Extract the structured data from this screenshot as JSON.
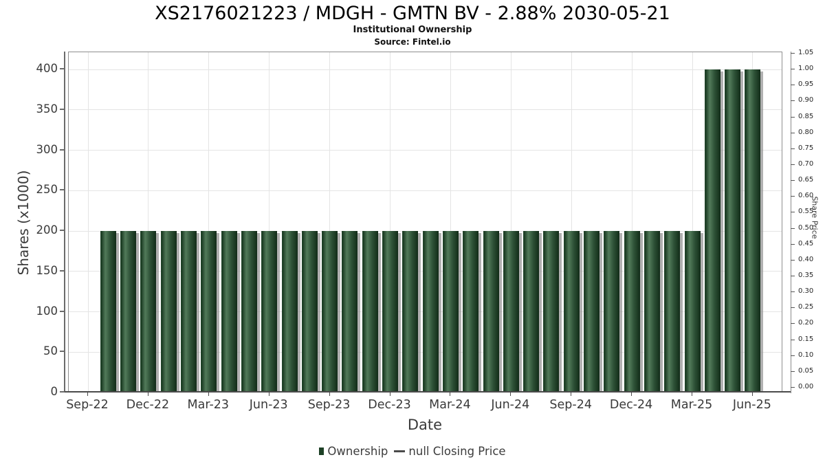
{
  "header": {
    "title": "XS2176021223 / MDGH - GMTN BV - 2.88% 2030-05-21",
    "subtitle": "Institutional Ownership",
    "source": "Source: Fintel.io"
  },
  "chart_data": {
    "type": "bar",
    "title": "XS2176021223 / MDGH - GMTN BV - 2.88% 2030-05-21",
    "xlabel": "Date",
    "ylabel_left": "Shares (x1000)",
    "ylabel_right": "Share Price",
    "x": [
      "Oct-22",
      "Nov-22",
      "Dec-22",
      "Jan-23",
      "Feb-23",
      "Mar-23",
      "Apr-23",
      "May-23",
      "Jun-23",
      "Jul-23",
      "Aug-23",
      "Sep-23",
      "Oct-23",
      "Nov-23",
      "Dec-23",
      "Jan-24",
      "Feb-24",
      "Mar-24",
      "Apr-24",
      "May-24",
      "Jun-24",
      "Jul-24",
      "Aug-24",
      "Sep-24",
      "Oct-24",
      "Nov-24",
      "Dec-24",
      "Jan-25",
      "Feb-25",
      "Mar-25",
      "Apr-25",
      "May-25",
      "Jun-25"
    ],
    "series": [
      {
        "name": "Ownership",
        "values": [
          200,
          200,
          200,
          200,
          200,
          200,
          200,
          200,
          200,
          200,
          200,
          200,
          200,
          200,
          200,
          200,
          200,
          200,
          200,
          200,
          200,
          200,
          200,
          200,
          200,
          200,
          200,
          200,
          200,
          200,
          400,
          400,
          400
        ]
      },
      {
        "name": "null Closing Price",
        "values": null
      }
    ],
    "x_ticks": [
      "Sep-22",
      "Dec-22",
      "Mar-23",
      "Jun-23",
      "Sep-23",
      "Dec-23",
      "Mar-24",
      "Jun-24",
      "Sep-24",
      "Dec-24",
      "Mar-25",
      "Jun-25"
    ],
    "left_ticks": [
      0,
      50,
      100,
      150,
      200,
      250,
      300,
      350,
      400
    ],
    "right_ticks": [
      "0.00",
      "0.05",
      "0.10",
      "0.15",
      "0.20",
      "0.25",
      "0.30",
      "0.35",
      "0.40",
      "0.45",
      "0.50",
      "0.55",
      "0.60",
      "0.65",
      "0.70",
      "0.75",
      "0.80",
      "0.85",
      "0.90",
      "0.95",
      "1.00",
      "1.05"
    ],
    "ylim_left": [
      0,
      420
    ],
    "ylim_right": [
      0,
      1.05
    ],
    "grid": true,
    "legend_position": "bottom"
  },
  "legend": {
    "items": [
      {
        "label": "Ownership",
        "marker": "square",
        "color": "#1d4126"
      },
      {
        "label": "null Closing Price",
        "marker": "line",
        "color": "#4a4a4a"
      }
    ]
  },
  "colors": {
    "bar_dark": "#1a3a22",
    "bar_light": "#527a5a",
    "bar_shadow": "#8f8f8f",
    "grid": "#e4e4e4",
    "axis": "#4a4a4a",
    "tick_text": "#3a3a3a"
  }
}
